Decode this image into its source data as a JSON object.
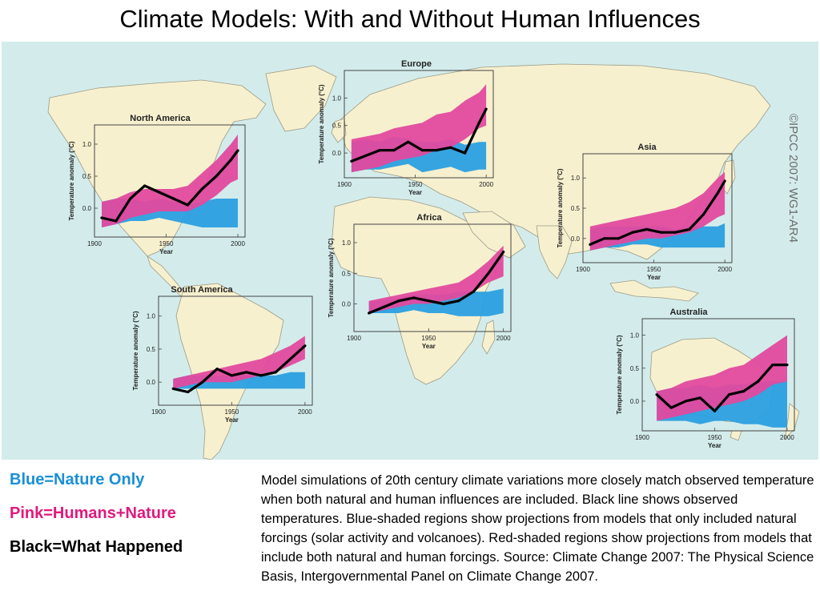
{
  "slide": {
    "title": "Climate Models: With and Without Human Influences",
    "credit": "©IPCC 2007: WG1-AR4",
    "legend": [
      {
        "label": "Blue=Nature Only",
        "color": "#1a8fd6"
      },
      {
        "label": "Pink=Humans+Nature",
        "color": "#e0197d"
      },
      {
        "label": "Black=What Happened",
        "color": "#000000"
      }
    ],
    "caption": "Model simulations of 20th century climate variations more closely match observed temperature when both natural and human influences are included. Black line shows observed temperatures. Blue-shaded regions show projections from models that only included natural forcings (solar activity and volcanoes). Red-shaded regions show projections from models that include both natural and human forcings. Source: Climate Change 2007: The Physical Science Basis, Intergovernmental Panel on Climate Change 2007."
  },
  "colors": {
    "ocean": "#d3eceb",
    "land": "#f7f0cf",
    "nature_band": "#2b9fe0",
    "human_band": "#e24a9e",
    "overlap": "#7b3fb0",
    "observed": "#000000"
  },
  "chart_data": [
    {
      "type": "line",
      "title": "North America",
      "ylabel": "Temperature anomaly (°C)",
      "xlabel": "Year",
      "xlim": [
        1900,
        2005
      ],
      "ylim": [
        -0.45,
        1.3
      ],
      "xticks": [
        "1900",
        "1950",
        "2000"
      ],
      "yticks": [
        "0.0",
        "0.5",
        "1.0"
      ],
      "x": [
        1905,
        1915,
        1925,
        1935,
        1945,
        1955,
        1965,
        1975,
        1985,
        1995,
        2000
      ],
      "series": [
        {
          "name": "Blue=Nature Only",
          "lower": [
            -0.3,
            -0.25,
            -0.2,
            -0.2,
            -0.15,
            -0.2,
            -0.25,
            -0.3,
            -0.3,
            -0.3,
            -0.3
          ],
          "upper": [
            0.1,
            0.15,
            0.15,
            0.1,
            0.15,
            0.1,
            0.05,
            0.1,
            0.15,
            0.15,
            0.15
          ]
        },
        {
          "name": "Pink=Humans+Nature",
          "lower": [
            -0.3,
            -0.25,
            -0.15,
            -0.1,
            -0.05,
            -0.05,
            -0.05,
            0.05,
            0.2,
            0.4,
            0.45
          ],
          "upper": [
            0.1,
            0.15,
            0.25,
            0.3,
            0.3,
            0.3,
            0.35,
            0.55,
            0.75,
            1.0,
            1.15
          ]
        },
        {
          "name": "Black=What Happened",
          "values": [
            -0.15,
            -0.2,
            0.15,
            0.35,
            0.25,
            0.15,
            0.05,
            0.3,
            0.5,
            0.75,
            0.9
          ]
        }
      ]
    },
    {
      "type": "line",
      "title": "Europe",
      "ylabel": "Temperature anomaly (°C)",
      "xlabel": "Year",
      "xlim": [
        1900,
        2005
      ],
      "ylim": [
        -0.45,
        1.5
      ],
      "xticks": [
        "1900",
        "1950",
        "2000"
      ],
      "yticks": [
        "0.0",
        "0.5",
        "1.0"
      ],
      "x": [
        1905,
        1915,
        1925,
        1935,
        1945,
        1955,
        1965,
        1975,
        1985,
        1995,
        2000
      ],
      "series": [
        {
          "name": "Blue=Nature Only",
          "lower": [
            -0.35,
            -0.3,
            -0.3,
            -0.25,
            -0.2,
            -0.35,
            -0.3,
            -0.25,
            -0.35,
            -0.3,
            -0.3
          ],
          "upper": [
            0.2,
            0.25,
            0.2,
            0.3,
            0.25,
            0.2,
            0.2,
            0.25,
            0.15,
            0.2,
            0.2
          ]
        },
        {
          "name": "Pink=Humans+Nature",
          "lower": [
            -0.35,
            -0.3,
            -0.25,
            -0.15,
            -0.1,
            -0.05,
            0.05,
            0.1,
            0.25,
            0.45,
            0.5
          ],
          "upper": [
            0.25,
            0.3,
            0.35,
            0.45,
            0.5,
            0.55,
            0.7,
            0.75,
            0.95,
            1.1,
            1.25
          ]
        },
        {
          "name": "Black=What Happened",
          "values": [
            -0.15,
            -0.05,
            0.05,
            0.05,
            0.2,
            0.05,
            0.05,
            0.1,
            0.0,
            0.55,
            0.8
          ]
        }
      ]
    },
    {
      "type": "line",
      "title": "Asia",
      "ylabel": "Temperature anomaly (°C)",
      "xlabel": "Year",
      "xlim": [
        1900,
        2005
      ],
      "ylim": [
        -0.4,
        1.4
      ],
      "xticks": [
        "1900",
        "1950",
        "2000"
      ],
      "yticks": [
        "0.0",
        "0.5",
        "1.0"
      ],
      "x": [
        1905,
        1915,
        1925,
        1935,
        1945,
        1955,
        1965,
        1975,
        1985,
        1995,
        2000
      ],
      "series": [
        {
          "name": "Blue=Nature Only",
          "lower": [
            -0.2,
            -0.15,
            -0.15,
            -0.1,
            -0.1,
            -0.15,
            -0.15,
            -0.15,
            -0.15,
            -0.15,
            -0.15
          ],
          "upper": [
            0.15,
            0.2,
            0.2,
            0.2,
            0.2,
            0.2,
            0.15,
            0.2,
            0.2,
            0.2,
            0.25
          ]
        },
        {
          "name": "Pink=Humans+Nature",
          "lower": [
            -0.2,
            -0.15,
            -0.1,
            -0.05,
            0.0,
            0.0,
            0.05,
            0.1,
            0.2,
            0.35,
            0.4
          ],
          "upper": [
            0.2,
            0.25,
            0.3,
            0.35,
            0.4,
            0.45,
            0.5,
            0.6,
            0.75,
            1.0,
            1.1
          ]
        },
        {
          "name": "Black=What Happened",
          "values": [
            -0.1,
            0.0,
            0.0,
            0.1,
            0.15,
            0.1,
            0.1,
            0.15,
            0.4,
            0.75,
            0.95
          ]
        }
      ]
    },
    {
      "type": "line",
      "title": "Africa",
      "ylabel": "Temperature anomaly (°C)",
      "xlabel": "Year",
      "xlim": [
        1900,
        2005
      ],
      "ylim": [
        -0.45,
        1.3
      ],
      "xticks": [
        "1900",
        "1950",
        "2000"
      ],
      "yticks": [
        "0.0",
        "0.5",
        "1.0"
      ],
      "x": [
        1910,
        1920,
        1930,
        1940,
        1950,
        1960,
        1970,
        1980,
        1990,
        2000
      ],
      "series": [
        {
          "name": "Blue=Nature Only",
          "lower": [
            -0.15,
            -0.15,
            -0.15,
            -0.1,
            -0.15,
            -0.15,
            -0.2,
            -0.2,
            -0.2,
            -0.15
          ],
          "upper": [
            0.05,
            0.05,
            0.1,
            0.15,
            0.15,
            0.15,
            0.2,
            0.2,
            0.2,
            0.25
          ]
        },
        {
          "name": "Pink=Humans+Nature",
          "lower": [
            -0.15,
            -0.1,
            -0.05,
            0.0,
            0.0,
            0.05,
            0.1,
            0.2,
            0.35,
            0.45
          ],
          "upper": [
            0.05,
            0.1,
            0.15,
            0.2,
            0.25,
            0.3,
            0.35,
            0.5,
            0.7,
            0.95
          ]
        },
        {
          "name": "Black=What Happened",
          "values": [
            -0.15,
            -0.05,
            0.05,
            0.1,
            0.05,
            0.0,
            0.05,
            0.2,
            0.5,
            0.85
          ]
        }
      ]
    },
    {
      "type": "line",
      "title": "South America",
      "ylabel": "Temperature anomaly (°C)",
      "xlabel": "Year",
      "xlim": [
        1900,
        2005
      ],
      "ylim": [
        -0.35,
        1.3
      ],
      "xticks": [
        "1900",
        "1950",
        "2000"
      ],
      "yticks": [
        "0.0",
        "0.5",
        "1.0"
      ],
      "x": [
        1910,
        1920,
        1930,
        1940,
        1950,
        1960,
        1970,
        1980,
        1990,
        2000
      ],
      "series": [
        {
          "name": "Blue=Nature Only",
          "lower": [
            -0.1,
            -0.1,
            -0.1,
            -0.1,
            -0.1,
            -0.1,
            -0.1,
            -0.1,
            -0.1,
            -0.1
          ],
          "upper": [
            0.05,
            0.1,
            0.1,
            0.1,
            0.1,
            0.1,
            0.1,
            0.1,
            0.15,
            0.15
          ]
        },
        {
          "name": "Pink=Humans+Nature",
          "lower": [
            -0.1,
            -0.05,
            0.0,
            0.0,
            0.0,
            0.05,
            0.1,
            0.15,
            0.25,
            0.35
          ],
          "upper": [
            0.05,
            0.1,
            0.15,
            0.2,
            0.25,
            0.3,
            0.35,
            0.45,
            0.55,
            0.7
          ]
        },
        {
          "name": "Black=What Happened",
          "values": [
            -0.1,
            -0.15,
            0.0,
            0.2,
            0.1,
            0.15,
            0.1,
            0.15,
            0.35,
            0.55
          ]
        }
      ]
    },
    {
      "type": "line",
      "title": "Australia",
      "ylabel": "Temperature anomaly (°C)",
      "xlabel": "Year",
      "xlim": [
        1900,
        2005
      ],
      "ylim": [
        -0.45,
        1.25
      ],
      "xticks": [
        "1900",
        "1950",
        "2000"
      ],
      "yticks": [
        "0.0",
        "0.5",
        "1.0"
      ],
      "x": [
        1910,
        1920,
        1930,
        1940,
        1950,
        1960,
        1970,
        1980,
        1990,
        2000
      ],
      "series": [
        {
          "name": "Blue=Nature Only",
          "lower": [
            -0.3,
            -0.3,
            -0.3,
            -0.35,
            -0.3,
            -0.3,
            -0.35,
            -0.35,
            -0.4,
            -0.4
          ],
          "upper": [
            0.15,
            0.2,
            0.2,
            0.25,
            0.2,
            0.25,
            0.25,
            0.3,
            0.3,
            0.3
          ]
        },
        {
          "name": "Pink=Humans+Nature",
          "lower": [
            -0.3,
            -0.25,
            -0.2,
            -0.15,
            -0.1,
            -0.05,
            0.0,
            0.1,
            0.25,
            0.3
          ],
          "upper": [
            0.15,
            0.2,
            0.3,
            0.35,
            0.4,
            0.5,
            0.55,
            0.7,
            0.85,
            1.0
          ]
        },
        {
          "name": "Black=What Happened",
          "values": [
            0.1,
            -0.1,
            0.0,
            0.05,
            -0.15,
            0.1,
            0.15,
            0.3,
            0.55,
            0.55
          ]
        }
      ]
    }
  ]
}
